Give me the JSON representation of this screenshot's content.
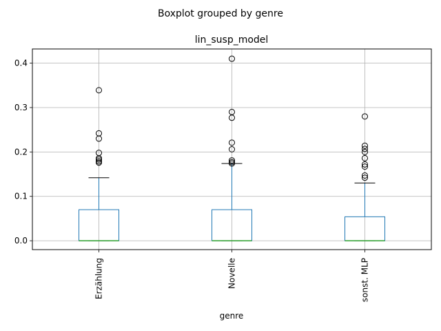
{
  "chart_data": {
    "type": "boxplot",
    "suptitle": "Boxplot grouped by genre",
    "title": "lin_susp_model",
    "xlabel": "genre",
    "ylabel": "",
    "ylim": [
      -0.02,
      0.432
    ],
    "yticks": [
      "0.0",
      "0.1",
      "0.2",
      "0.3",
      "0.4"
    ],
    "grid": true,
    "colors": {
      "box": "#1f77b4",
      "whisker": "#1f77b4",
      "median": "#2ca02c",
      "cap": "#000000",
      "flier": "#000000",
      "grid": "#b0b0b0"
    },
    "categories": [
      "Erzählung",
      "Novelle",
      "sonst. MLP"
    ],
    "boxes": [
      {
        "label": "Erzählung",
        "whislo": 0.0,
        "q1": 0.0,
        "med": 0.0,
        "q3": 0.07,
        "whishi": 0.142,
        "fliers": [
          0.176,
          0.179,
          0.183,
          0.186,
          0.198,
          0.23,
          0.242,
          0.339
        ]
      },
      {
        "label": "Novelle",
        "whislo": 0.0,
        "q1": 0.0,
        "med": 0.0,
        "q3": 0.07,
        "whishi": 0.174,
        "fliers": [
          0.174,
          0.177,
          0.181,
          0.206,
          0.221,
          0.277,
          0.29,
          0.41
        ]
      },
      {
        "label": "sonst. MLP",
        "whislo": 0.0,
        "q1": 0.0,
        "med": 0.0,
        "q3": 0.054,
        "whishi": 0.13,
        "fliers": [
          0.142,
          0.147,
          0.167,
          0.172,
          0.186,
          0.2,
          0.207,
          0.214,
          0.28
        ]
      }
    ]
  }
}
